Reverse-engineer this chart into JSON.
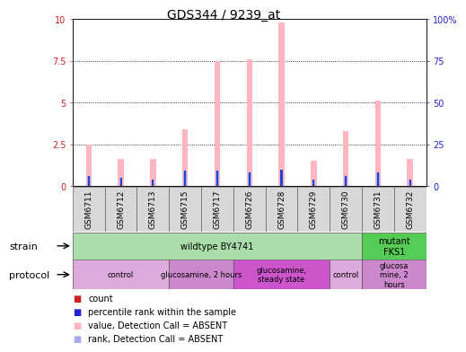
{
  "title": "GDS344 / 9239_at",
  "samples": [
    "GSM6711",
    "GSM6712",
    "GSM6713",
    "GSM6715",
    "GSM6717",
    "GSM6726",
    "GSM6728",
    "GSM6729",
    "GSM6730",
    "GSM6731",
    "GSM6732"
  ],
  "pink_values": [
    2.5,
    1.6,
    1.6,
    3.4,
    7.5,
    7.6,
    9.8,
    1.5,
    3.3,
    5.1,
    1.6
  ],
  "red_counts": [
    0.18,
    0.12,
    0.12,
    0.18,
    0.18,
    0.18,
    0.18,
    0.12,
    0.18,
    0.18,
    0.12
  ],
  "blue_ranks": [
    6,
    5,
    4,
    9,
    9,
    8,
    10,
    4,
    6,
    8,
    4
  ],
  "ylim": [
    0,
    10
  ],
  "y2lim": [
    0,
    100
  ],
  "yticks": [
    0,
    2.5,
    5.0,
    7.5,
    10
  ],
  "y2ticks": [
    0,
    25,
    50,
    75,
    100
  ],
  "strain_groups": [
    {
      "label": "wildtype BY4741",
      "start": 0,
      "end": 9,
      "color": "#aaddaa"
    },
    {
      "label": "mutant\nFKS1",
      "start": 9,
      "end": 11,
      "color": "#55cc55"
    }
  ],
  "protocol_groups": [
    {
      "label": "control",
      "start": 0,
      "end": 3,
      "color": "#ddaadd"
    },
    {
      "label": "glucosamine, 2 hours",
      "start": 3,
      "end": 5,
      "color": "#cc88cc"
    },
    {
      "label": "glucosamine,\nsteady state",
      "start": 5,
      "end": 8,
      "color": "#cc55cc"
    },
    {
      "label": "control",
      "start": 8,
      "end": 9,
      "color": "#ddaadd"
    },
    {
      "label": "glucosa\nmine, 2\nhours",
      "start": 9,
      "end": 11,
      "color": "#cc88cc"
    }
  ],
  "legend_items": [
    {
      "color": "#cc2222",
      "marker_color": "#cc2222",
      "label": "count"
    },
    {
      "color": "#2222cc",
      "marker_color": "#2222cc",
      "label": "percentile rank within the sample"
    },
    {
      "color": "#ffb6c1",
      "marker_color": "#ffb6c1",
      "label": "value, Detection Call = ABSENT"
    },
    {
      "color": "#aaaaee",
      "marker_color": "#aaaaee",
      "label": "rank, Detection Call = ABSENT"
    }
  ],
  "pink_bar_width": 0.18,
  "red_bar_width": 0.06,
  "blue_bar_width": 0.06,
  "light_blue_bar_width": 0.1,
  "title_fontsize": 10,
  "tick_fontsize": 7,
  "sample_label_fontsize": 6.5,
  "left_axis_color": "#cc2222",
  "right_axis_color": "#2222cc",
  "bg_color": "#ffffff"
}
